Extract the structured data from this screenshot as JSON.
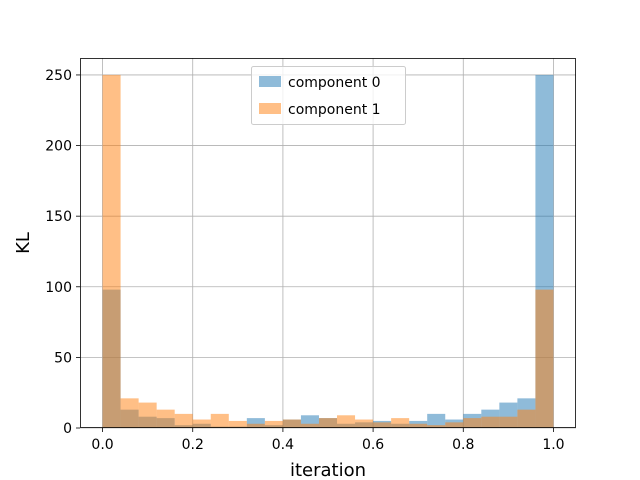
{
  "chart_data": {
    "type": "bar",
    "subtype": "overlaid-histogram",
    "xlabel": "iteration",
    "ylabel": "KL",
    "xlim": [
      -0.05,
      1.05
    ],
    "ylim": [
      0,
      262
    ],
    "xticks": [
      0.0,
      0.2,
      0.4,
      0.6,
      0.8,
      1.0
    ],
    "xtick_labels": [
      "0.0",
      "0.2",
      "0.4",
      "0.6",
      "0.8",
      "1.0"
    ],
    "yticks": [
      0,
      50,
      100,
      150,
      200,
      250
    ],
    "ytick_labels": [
      "0",
      "50",
      "100",
      "150",
      "200",
      "250"
    ],
    "grid": true,
    "legend_position": "top-center",
    "bin_edges": [
      0.0,
      0.04,
      0.08,
      0.12,
      0.16,
      0.2,
      0.24,
      0.28,
      0.32,
      0.36,
      0.4,
      0.44,
      0.48,
      0.52,
      0.56,
      0.6,
      0.64,
      0.68,
      0.72,
      0.76,
      0.8,
      0.84,
      0.88,
      0.92,
      0.96,
      1.0
    ],
    "series": [
      {
        "name": "component 0",
        "color": "#1f77b4",
        "alpha": 0.5,
        "values": [
          98,
          13,
          8,
          7,
          2,
          3,
          1,
          1,
          7,
          2,
          6,
          9,
          7,
          3,
          4,
          5,
          3,
          5,
          10,
          6,
          10,
          13,
          18,
          21,
          250
        ]
      },
      {
        "name": "component 1",
        "color": "#ff7f0e",
        "alpha": 0.5,
        "values": [
          250,
          21,
          18,
          13,
          10,
          6,
          10,
          5,
          3,
          5,
          6,
          3,
          7,
          9,
          6,
          4,
          7,
          3,
          2,
          4,
          7,
          8,
          8,
          13,
          98
        ]
      }
    ]
  }
}
